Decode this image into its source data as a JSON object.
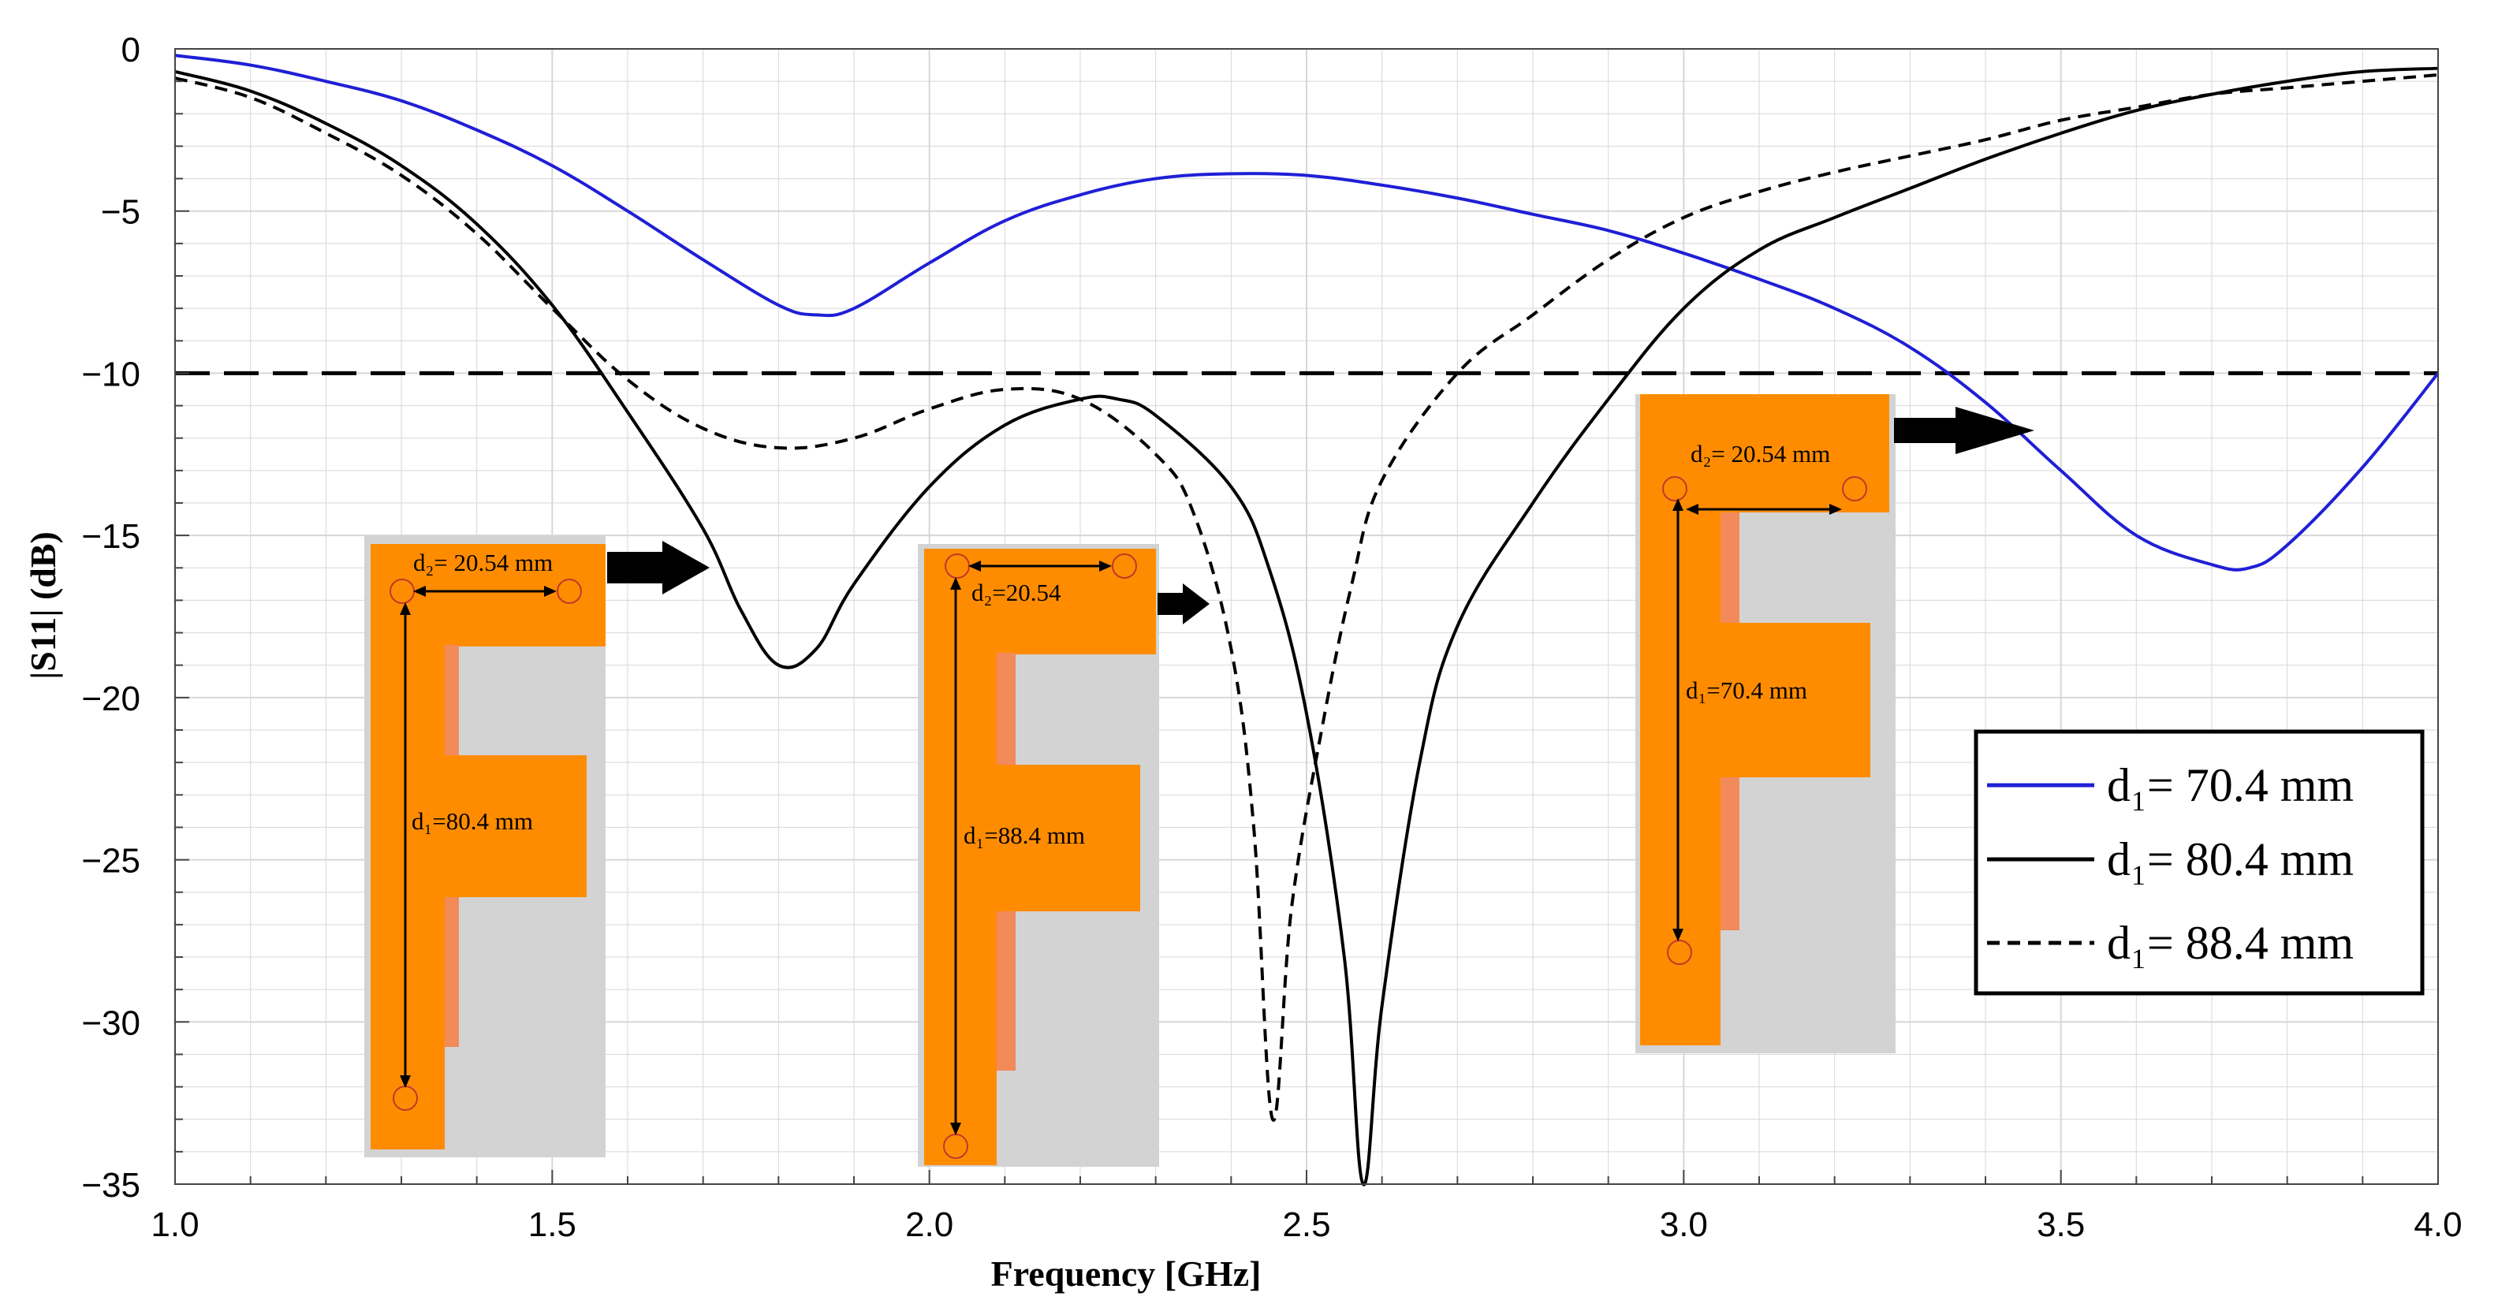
{
  "chart_data": {
    "type": "line",
    "title": "",
    "xlabel": "Frequency [GHz]",
    "ylabel": "|S11| (dB)",
    "xlim": [
      1.0,
      4.0
    ],
    "ylim": [
      -35,
      0
    ],
    "x_ticks": [
      "1.0",
      "1.5",
      "2.0",
      "2.5",
      "3.0",
      "3.5",
      "4.0"
    ],
    "y_ticks": [
      "0",
      "−5",
      "−10",
      "−15",
      "−20",
      "−25",
      "−30",
      "−35"
    ],
    "grid": true,
    "reference_line": {
      "y": -10,
      "style": "long-dash",
      "color": "#000000"
    },
    "legend_position": "bottom-right",
    "series": [
      {
        "name": "d₁= 70.4 mm",
        "color": "#1f1fd6",
        "dash": "solid",
        "points": [
          [
            1.0,
            -0.2
          ],
          [
            1.1,
            -0.5
          ],
          [
            1.2,
            -1.0
          ],
          [
            1.3,
            -1.6
          ],
          [
            1.4,
            -2.5
          ],
          [
            1.5,
            -3.6
          ],
          [
            1.6,
            -5.0
          ],
          [
            1.7,
            -6.5
          ],
          [
            1.8,
            -7.9
          ],
          [
            1.85,
            -8.2
          ],
          [
            1.9,
            -8.0
          ],
          [
            2.0,
            -6.6
          ],
          [
            2.1,
            -5.3
          ],
          [
            2.2,
            -4.5
          ],
          [
            2.3,
            -4.0
          ],
          [
            2.4,
            -3.85
          ],
          [
            2.5,
            -3.9
          ],
          [
            2.6,
            -4.2
          ],
          [
            2.7,
            -4.6
          ],
          [
            2.8,
            -5.1
          ],
          [
            2.9,
            -5.6
          ],
          [
            3.0,
            -6.3
          ],
          [
            3.1,
            -7.1
          ],
          [
            3.2,
            -8.0
          ],
          [
            3.3,
            -9.2
          ],
          [
            3.4,
            -10.9
          ],
          [
            3.5,
            -13.0
          ],
          [
            3.6,
            -15.0
          ],
          [
            3.7,
            -15.9
          ],
          [
            3.75,
            -16.0
          ],
          [
            3.8,
            -15.3
          ],
          [
            3.9,
            -12.9
          ],
          [
            4.0,
            -10.0
          ]
        ]
      },
      {
        "name": "d₁= 80.4 mm",
        "color": "#000000",
        "dash": "solid",
        "points": [
          [
            1.0,
            -0.7
          ],
          [
            1.1,
            -1.3
          ],
          [
            1.2,
            -2.3
          ],
          [
            1.3,
            -3.6
          ],
          [
            1.4,
            -5.4
          ],
          [
            1.5,
            -7.9
          ],
          [
            1.6,
            -11.2
          ],
          [
            1.7,
            -14.8
          ],
          [
            1.75,
            -17.3
          ],
          [
            1.8,
            -19.0
          ],
          [
            1.85,
            -18.5
          ],
          [
            1.9,
            -16.5
          ],
          [
            2.0,
            -13.5
          ],
          [
            2.1,
            -11.6
          ],
          [
            2.2,
            -10.8
          ],
          [
            2.25,
            -10.8
          ],
          [
            2.3,
            -11.3
          ],
          [
            2.4,
            -13.5
          ],
          [
            2.45,
            -16.0
          ],
          [
            2.5,
            -20.5
          ],
          [
            2.55,
            -28.0
          ],
          [
            2.575,
            -35.0
          ],
          [
            2.6,
            -29.5
          ],
          [
            2.65,
            -22.0
          ],
          [
            2.7,
            -17.8
          ],
          [
            2.8,
            -14.0
          ],
          [
            2.9,
            -10.8
          ],
          [
            3.0,
            -8.0
          ],
          [
            3.1,
            -6.2
          ],
          [
            3.2,
            -5.2
          ],
          [
            3.3,
            -4.3
          ],
          [
            3.4,
            -3.4
          ],
          [
            3.5,
            -2.6
          ],
          [
            3.6,
            -1.9
          ],
          [
            3.7,
            -1.4
          ],
          [
            3.8,
            -1.0
          ],
          [
            3.9,
            -0.7
          ],
          [
            4.0,
            -0.6
          ]
        ]
      },
      {
        "name": "d₁= 88.4 mm",
        "color": "#000000",
        "dash": "dashed",
        "points": [
          [
            1.0,
            -0.9
          ],
          [
            1.1,
            -1.5
          ],
          [
            1.2,
            -2.6
          ],
          [
            1.3,
            -3.9
          ],
          [
            1.4,
            -5.7
          ],
          [
            1.5,
            -8.0
          ],
          [
            1.6,
            -10.2
          ],
          [
            1.7,
            -11.7
          ],
          [
            1.8,
            -12.3
          ],
          [
            1.9,
            -12.0
          ],
          [
            2.0,
            -11.1
          ],
          [
            2.1,
            -10.5
          ],
          [
            2.2,
            -10.8
          ],
          [
            2.3,
            -12.5
          ],
          [
            2.35,
            -14.3
          ],
          [
            2.4,
            -18.5
          ],
          [
            2.43,
            -24.0
          ],
          [
            2.455,
            -33.0
          ],
          [
            2.48,
            -26.5
          ],
          [
            2.52,
            -21.0
          ],
          [
            2.56,
            -16.5
          ],
          [
            2.6,
            -13.3
          ],
          [
            2.7,
            -10.0
          ],
          [
            2.8,
            -8.2
          ],
          [
            2.9,
            -6.5
          ],
          [
            3.0,
            -5.2
          ],
          [
            3.1,
            -4.4
          ],
          [
            3.2,
            -3.8
          ],
          [
            3.3,
            -3.3
          ],
          [
            3.4,
            -2.8
          ],
          [
            3.5,
            -2.2
          ],
          [
            3.6,
            -1.8
          ],
          [
            3.7,
            -1.4
          ],
          [
            3.8,
            -1.2
          ],
          [
            3.9,
            -1.0
          ],
          [
            4.0,
            -0.8
          ]
        ]
      }
    ],
    "insets": [
      {
        "d2_label": "d₂= 20.54 mm",
        "d1_label": "d₁=80.4 mm"
      },
      {
        "d2_label": "d₂=20.54",
        "d1_label": "d₁=88.4 mm"
      },
      {
        "d2_label": "d₂= 20.54 mm",
        "d1_label": "d₁=70.4 mm"
      }
    ]
  },
  "colors": {
    "grid": "#d7d7d7",
    "antenna_orange": "#ff8c00",
    "antenna_strip": "#f28a5a",
    "substrate_gray": "#d3d3d3"
  }
}
